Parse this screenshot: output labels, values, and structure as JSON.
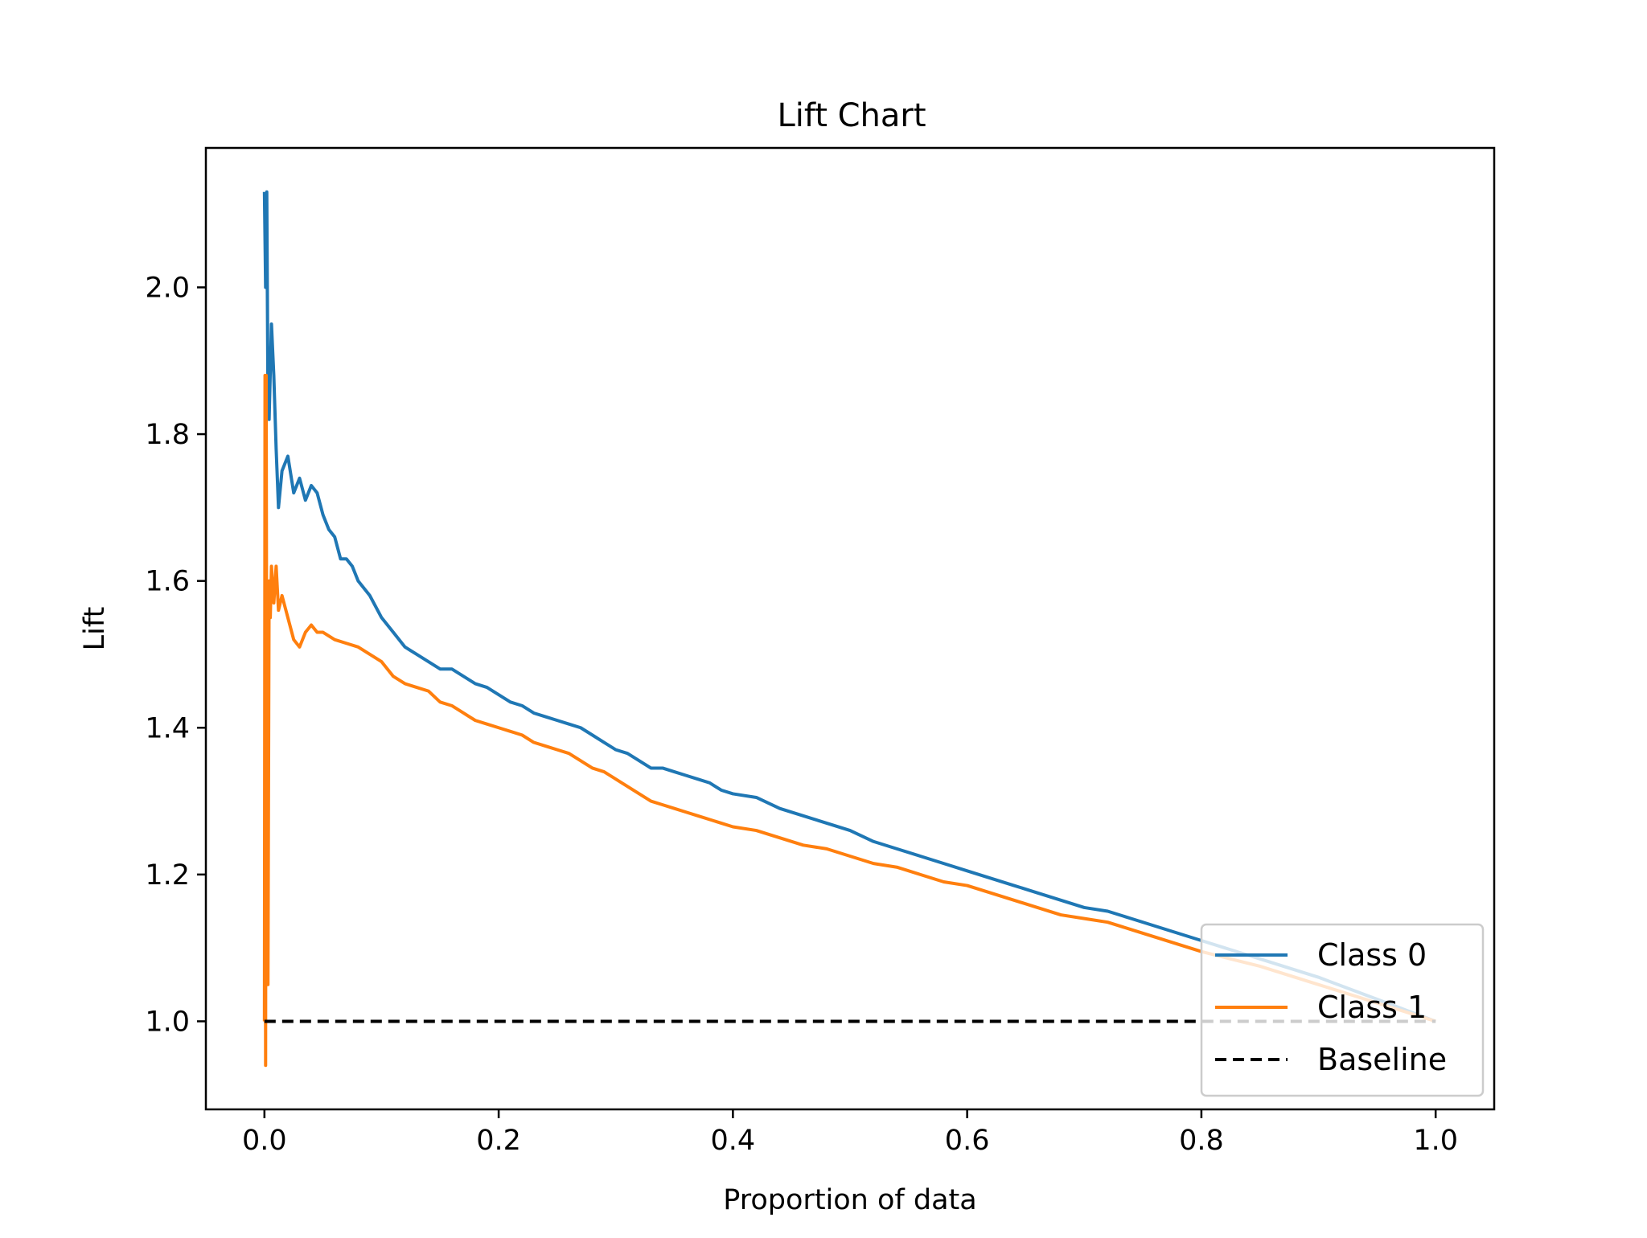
{
  "chart_data": {
    "type": "line",
    "title": "Lift Chart",
    "xlabel": "Proportion of data",
    "ylabel": "Lift",
    "xlim": [
      -0.05,
      1.05
    ],
    "ylim": [
      0.88,
      2.19
    ],
    "grid": false,
    "legend_position": "lower-right",
    "x_ticks": [
      {
        "value": 0.0,
        "label": "0.0"
      },
      {
        "value": 0.2,
        "label": "0.2"
      },
      {
        "value": 0.4,
        "label": "0.4"
      },
      {
        "value": 0.6,
        "label": "0.6"
      },
      {
        "value": 0.8,
        "label": "0.8"
      },
      {
        "value": 1.0,
        "label": "1.0"
      }
    ],
    "y_ticks": [
      {
        "value": 1.0,
        "label": "1.0"
      },
      {
        "value": 1.2,
        "label": "1.2"
      },
      {
        "value": 1.4,
        "label": "1.4"
      },
      {
        "value": 1.6,
        "label": "1.6"
      },
      {
        "value": 1.8,
        "label": "1.8"
      },
      {
        "value": 2.0,
        "label": "2.0"
      }
    ],
    "series": [
      {
        "name": "Class 0",
        "color": "#1f77b4",
        "style": "solid",
        "points": [
          [
            0.0,
            2.13
          ],
          [
            0.001,
            2.0
          ],
          [
            0.002,
            2.13
          ],
          [
            0.003,
            1.85
          ],
          [
            0.004,
            1.82
          ],
          [
            0.006,
            1.95
          ],
          [
            0.008,
            1.88
          ],
          [
            0.01,
            1.78
          ],
          [
            0.012,
            1.7
          ],
          [
            0.015,
            1.75
          ],
          [
            0.02,
            1.77
          ],
          [
            0.025,
            1.72
          ],
          [
            0.03,
            1.74
          ],
          [
            0.035,
            1.71
          ],
          [
            0.04,
            1.73
          ],
          [
            0.045,
            1.72
          ],
          [
            0.05,
            1.69
          ],
          [
            0.055,
            1.67
          ],
          [
            0.06,
            1.66
          ],
          [
            0.065,
            1.63
          ],
          [
            0.07,
            1.63
          ],
          [
            0.075,
            1.62
          ],
          [
            0.08,
            1.6
          ],
          [
            0.09,
            1.58
          ],
          [
            0.1,
            1.55
          ],
          [
            0.11,
            1.53
          ],
          [
            0.12,
            1.51
          ],
          [
            0.13,
            1.5
          ],
          [
            0.14,
            1.49
          ],
          [
            0.15,
            1.48
          ],
          [
            0.16,
            1.48
          ],
          [
            0.17,
            1.47
          ],
          [
            0.18,
            1.46
          ],
          [
            0.19,
            1.455
          ],
          [
            0.2,
            1.445
          ],
          [
            0.21,
            1.435
          ],
          [
            0.22,
            1.43
          ],
          [
            0.23,
            1.42
          ],
          [
            0.24,
            1.415
          ],
          [
            0.25,
            1.41
          ],
          [
            0.26,
            1.405
          ],
          [
            0.27,
            1.4
          ],
          [
            0.28,
            1.39
          ],
          [
            0.29,
            1.38
          ],
          [
            0.3,
            1.37
          ],
          [
            0.31,
            1.365
          ],
          [
            0.32,
            1.355
          ],
          [
            0.33,
            1.345
          ],
          [
            0.34,
            1.345
          ],
          [
            0.35,
            1.34
          ],
          [
            0.36,
            1.335
          ],
          [
            0.37,
            1.33
          ],
          [
            0.38,
            1.325
          ],
          [
            0.39,
            1.315
          ],
          [
            0.4,
            1.31
          ],
          [
            0.42,
            1.305
          ],
          [
            0.44,
            1.29
          ],
          [
            0.46,
            1.28
          ],
          [
            0.48,
            1.27
          ],
          [
            0.5,
            1.26
          ],
          [
            0.52,
            1.245
          ],
          [
            0.54,
            1.235
          ],
          [
            0.56,
            1.225
          ],
          [
            0.58,
            1.215
          ],
          [
            0.6,
            1.205
          ],
          [
            0.62,
            1.195
          ],
          [
            0.64,
            1.185
          ],
          [
            0.66,
            1.175
          ],
          [
            0.68,
            1.165
          ],
          [
            0.7,
            1.155
          ],
          [
            0.72,
            1.15
          ],
          [
            0.74,
            1.14
          ],
          [
            0.76,
            1.13
          ],
          [
            0.78,
            1.12
          ],
          [
            0.8,
            1.11
          ],
          [
            0.85,
            1.085
          ],
          [
            0.9,
            1.06
          ],
          [
            0.95,
            1.03
          ],
          [
            1.0,
            1.0
          ]
        ]
      },
      {
        "name": "Class 1",
        "color": "#ff7f0e",
        "style": "solid",
        "points": [
          [
            0.0,
            1.0
          ],
          [
            0.0005,
            1.88
          ],
          [
            0.001,
            0.94
          ],
          [
            0.0015,
            1.88
          ],
          [
            0.002,
            1.3
          ],
          [
            0.003,
            1.05
          ],
          [
            0.004,
            1.6
          ],
          [
            0.005,
            1.55
          ],
          [
            0.006,
            1.62
          ],
          [
            0.008,
            1.57
          ],
          [
            0.01,
            1.62
          ],
          [
            0.012,
            1.56
          ],
          [
            0.015,
            1.58
          ],
          [
            0.02,
            1.55
          ],
          [
            0.025,
            1.52
          ],
          [
            0.03,
            1.51
          ],
          [
            0.035,
            1.53
          ],
          [
            0.04,
            1.54
          ],
          [
            0.045,
            1.53
          ],
          [
            0.05,
            1.53
          ],
          [
            0.06,
            1.52
          ],
          [
            0.07,
            1.515
          ],
          [
            0.08,
            1.51
          ],
          [
            0.09,
            1.5
          ],
          [
            0.1,
            1.49
          ],
          [
            0.11,
            1.47
          ],
          [
            0.12,
            1.46
          ],
          [
            0.13,
            1.455
          ],
          [
            0.14,
            1.45
          ],
          [
            0.15,
            1.435
          ],
          [
            0.16,
            1.43
          ],
          [
            0.17,
            1.42
          ],
          [
            0.18,
            1.41
          ],
          [
            0.19,
            1.405
          ],
          [
            0.2,
            1.4
          ],
          [
            0.21,
            1.395
          ],
          [
            0.22,
            1.39
          ],
          [
            0.23,
            1.38
          ],
          [
            0.24,
            1.375
          ],
          [
            0.25,
            1.37
          ],
          [
            0.26,
            1.365
          ],
          [
            0.27,
            1.355
          ],
          [
            0.28,
            1.345
          ],
          [
            0.29,
            1.34
          ],
          [
            0.3,
            1.33
          ],
          [
            0.31,
            1.32
          ],
          [
            0.32,
            1.31
          ],
          [
            0.33,
            1.3
          ],
          [
            0.34,
            1.295
          ],
          [
            0.35,
            1.29
          ],
          [
            0.36,
            1.285
          ],
          [
            0.37,
            1.28
          ],
          [
            0.38,
            1.275
          ],
          [
            0.39,
            1.27
          ],
          [
            0.4,
            1.265
          ],
          [
            0.42,
            1.26
          ],
          [
            0.44,
            1.25
          ],
          [
            0.46,
            1.24
          ],
          [
            0.48,
            1.235
          ],
          [
            0.5,
            1.225
          ],
          [
            0.52,
            1.215
          ],
          [
            0.54,
            1.21
          ],
          [
            0.56,
            1.2
          ],
          [
            0.58,
            1.19
          ],
          [
            0.6,
            1.185
          ],
          [
            0.62,
            1.175
          ],
          [
            0.64,
            1.165
          ],
          [
            0.66,
            1.155
          ],
          [
            0.68,
            1.145
          ],
          [
            0.7,
            1.14
          ],
          [
            0.72,
            1.135
          ],
          [
            0.74,
            1.125
          ],
          [
            0.76,
            1.115
          ],
          [
            0.78,
            1.105
          ],
          [
            0.8,
            1.095
          ],
          [
            0.85,
            1.075
          ],
          [
            0.9,
            1.05
          ],
          [
            0.95,
            1.025
          ],
          [
            1.0,
            1.0
          ]
        ]
      },
      {
        "name": "Baseline",
        "color": "#000000",
        "style": "dashed",
        "points": [
          [
            0.0,
            1.0
          ],
          [
            1.0,
            1.0
          ]
        ]
      }
    ]
  }
}
